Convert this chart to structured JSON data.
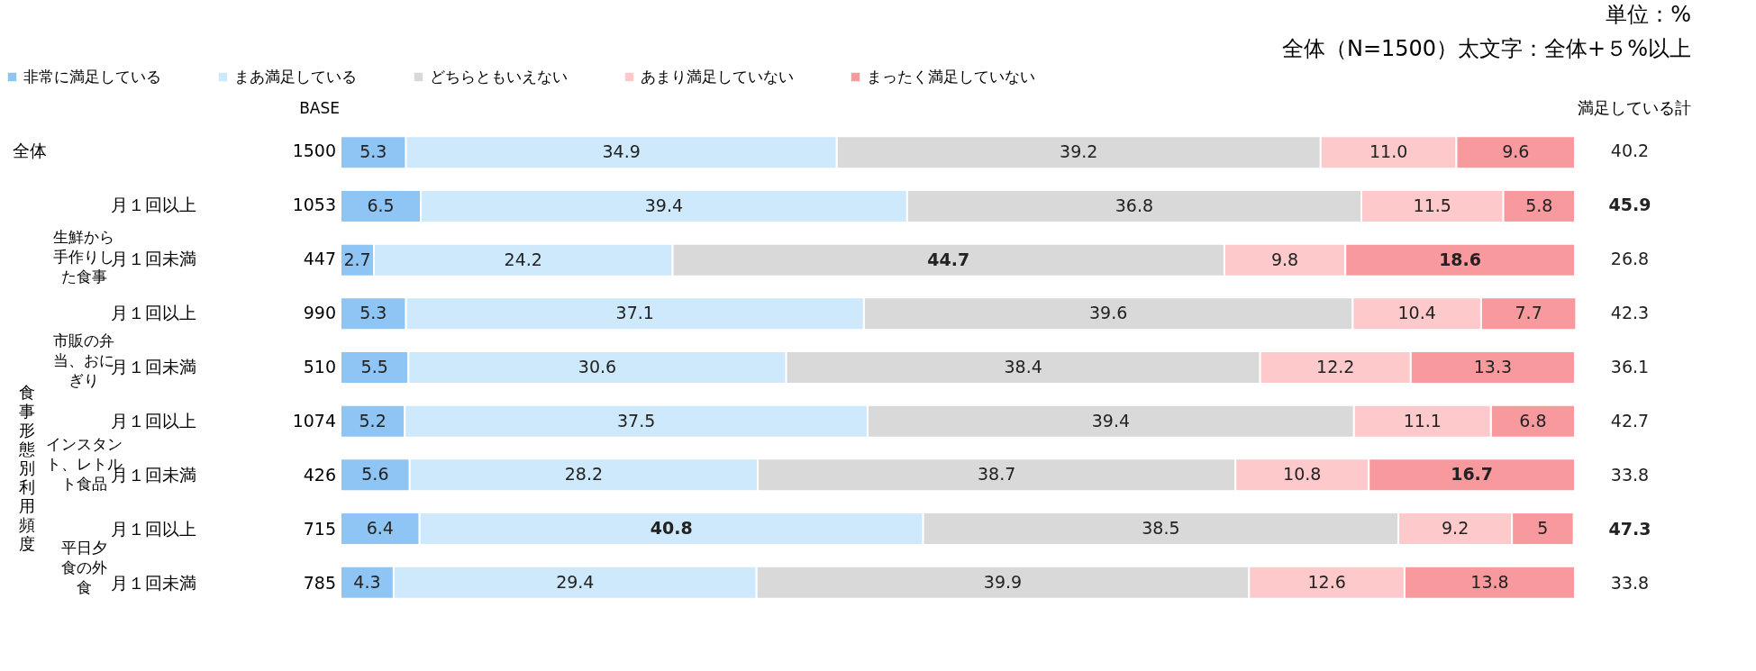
{
  "chart_data": {
    "type": "bar",
    "orientation": "horizontal",
    "stacked": true,
    "title": "単位：%",
    "subtitle": "全体（N=1500）太文字：全体+５%以上",
    "categories": [
      null,
      "月１回以上",
      "月１回未満",
      "月１回以上",
      "月１回未満",
      "月１回以上",
      "月１回未満",
      "月１回以上",
      "月１回未満"
    ],
    "series": [
      {
        "name": "非常に満足している",
        "color": "#8ec5f5",
        "values": [
          5.3,
          6.5,
          2.7,
          5.3,
          5.5,
          5.2,
          5.6,
          6.4,
          4.3
        ],
        "value_labels": [
          "5.3",
          "6.5",
          "2.7",
          "5.3",
          "5.5",
          "5.2",
          "5.6",
          "6.4",
          "4.3"
        ]
      },
      {
        "name": "まあ満足している",
        "color": "#cde9fb",
        "values": [
          34.9,
          39.4,
          24.2,
          37.1,
          30.6,
          37.5,
          28.2,
          40.8,
          29.4
        ],
        "value_labels": [
          "34.9",
          "39.4",
          "24.2",
          "37.1",
          "30.6",
          "37.5",
          "28.2",
          "40.8",
          "29.4"
        ]
      },
      {
        "name": "どちらともいえない",
        "color": "#d9d9d9",
        "values": [
          39.2,
          36.8,
          44.7,
          39.6,
          38.4,
          39.4,
          38.7,
          38.5,
          39.9
        ],
        "value_labels": [
          "39.2",
          "36.8",
          "44.7",
          "39.6",
          "38.4",
          "39.4",
          "38.7",
          "38.5",
          "39.9"
        ]
      },
      {
        "name": "あまり満足していない",
        "color": "#fdc9cb",
        "values": [
          11.0,
          11.5,
          9.8,
          10.4,
          12.2,
          11.1,
          10.8,
          9.2,
          12.6
        ],
        "value_labels": [
          "11.0",
          "11.5",
          "9.8",
          "10.4",
          "12.2",
          "11.1",
          "10.8",
          "9.2",
          "12.6"
        ]
      },
      {
        "name": "まったく満足していない",
        "color": "#f8999d",
        "values": [
          9.6,
          5.8,
          18.6,
          7.7,
          13.3,
          6.8,
          16.7,
          5,
          13.8
        ],
        "value_labels": [
          "9.6",
          "5.8",
          "18.6",
          "7.7",
          "13.3",
          "6.8",
          "16.7",
          "5",
          "13.8"
        ]
      }
    ],
    "xlim": [
      0,
      100
    ],
    "tick_labels": false,
    "legend": "top",
    "annotations": [
      "食事形態別利用頻度",
      "生鮮から手作りした食事",
      "市販の弁当、おにぎり",
      "インスタント、レトルト食品",
      "平日夕食の外食",
      "BASE",
      "1500",
      "1053",
      "447",
      "990",
      "510",
      "1074",
      "426",
      "715",
      "785",
      "満足している計",
      "40.2",
      "45.9",
      "26.8",
      "42.3",
      "36.1",
      "42.7",
      "33.8",
      "47.3",
      "33.8",
      "全体"
    ]
  }
}
